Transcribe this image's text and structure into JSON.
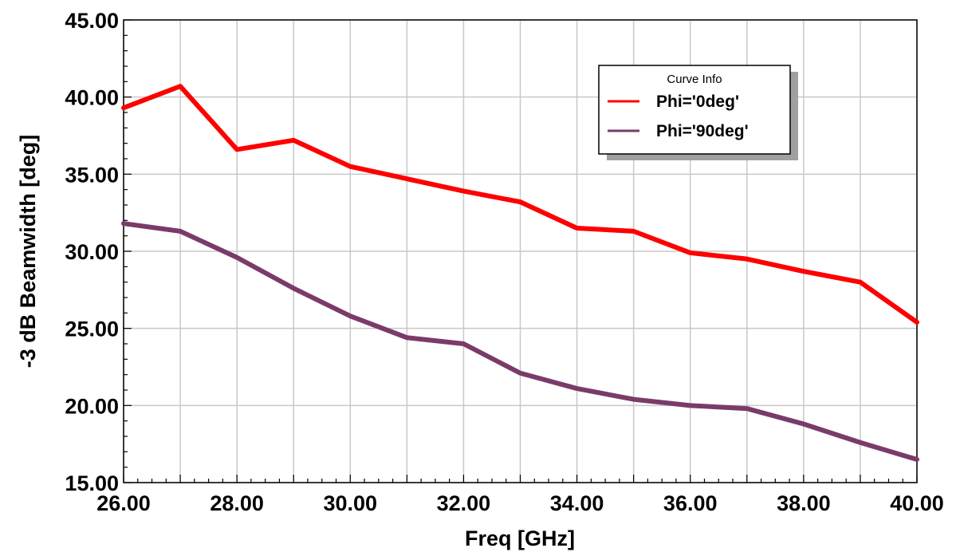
{
  "chart_data": {
    "type": "line",
    "xlabel": "Freq [GHz]",
    "ylabel": "-3 dB Beamwidth [deg]",
    "xlim": [
      26,
      40
    ],
    "ylim": [
      15,
      45
    ],
    "x_ticks": [
      "26.00",
      "28.00",
      "30.00",
      "32.00",
      "34.00",
      "36.00",
      "38.00",
      "40.00"
    ],
    "y_ticks": [
      "15.00",
      "20.00",
      "25.00",
      "30.00",
      "35.00",
      "40.00",
      "45.00"
    ],
    "grid": true,
    "legend_position": "top-right",
    "legend_title": "Curve Info",
    "x": [
      26,
      27,
      28,
      29,
      30,
      31,
      32,
      33,
      34,
      35,
      36,
      37,
      38,
      39,
      40
    ],
    "series": [
      {
        "name": "Phi='0deg'",
        "color": "#ff0000",
        "values": [
          39.3,
          40.7,
          36.6,
          37.2,
          35.5,
          34.7,
          33.9,
          33.2,
          31.5,
          31.3,
          29.9,
          29.5,
          28.7,
          28.0,
          25.4
        ]
      },
      {
        "name": "Phi='90deg'",
        "color": "#7a3b6a",
        "values": [
          31.8,
          31.3,
          29.6,
          27.6,
          25.8,
          24.4,
          24.0,
          22.1,
          21.1,
          20.4,
          20.0,
          19.8,
          18.8,
          17.6,
          16.5
        ]
      }
    ]
  }
}
